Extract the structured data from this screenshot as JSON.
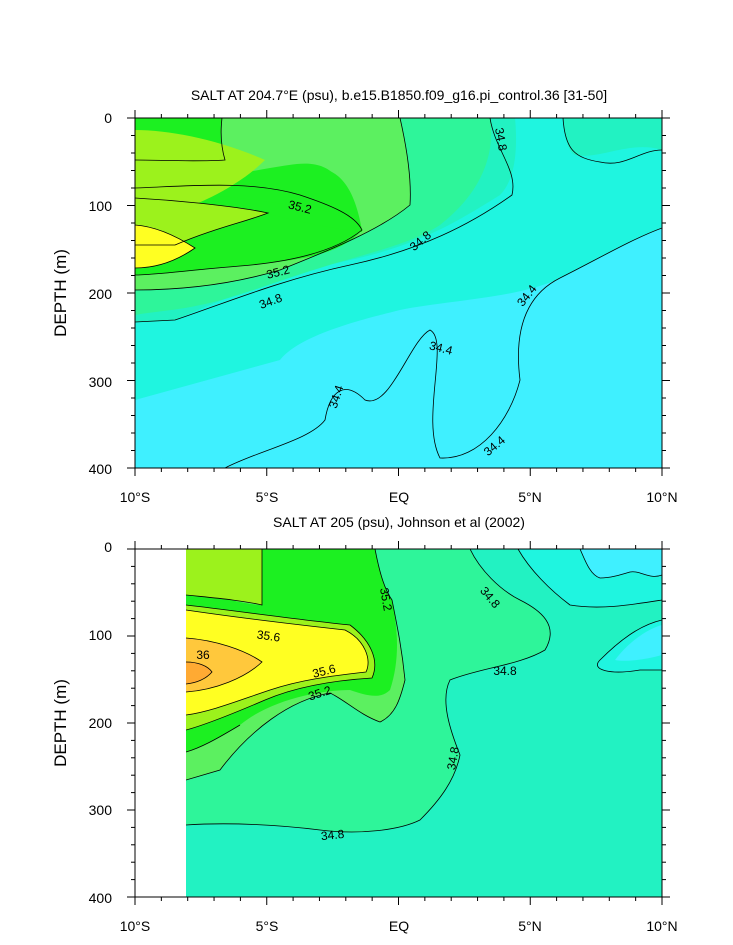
{
  "chart_data": [
    {
      "type": "contour",
      "title": "SALT AT 204.7°E (psu), b.e15.B1850.f09_g16.pi_control.36 [31-50]",
      "ylabel": "DEPTH (m)",
      "x_ticks": [
        "10°S",
        "5°S",
        "EQ",
        "5°N",
        "10°N"
      ],
      "x_values": [
        -10,
        -5,
        0,
        5,
        10
      ],
      "y_ticks": [
        "0",
        "100",
        "200",
        "300",
        "400"
      ],
      "ylim": [
        0,
        400
      ],
      "y_reversed": true,
      "contour_interval": 0.2,
      "contour_labels": [
        "34.8",
        "35.2",
        "34.8",
        "35.2",
        "34.8",
        "34.4",
        "34.4",
        "34.4",
        "34.4"
      ],
      "min_level": 34.2,
      "max_level": 35.6
    },
    {
      "type": "contour",
      "title": "SALT AT 205 (psu), Johnson et al (2002)",
      "ylabel": "DEPTH (m)",
      "x_ticks": [
        "10°S",
        "5°S",
        "EQ",
        "5°N",
        "10°N"
      ],
      "x_values": [
        -10,
        -5,
        0,
        5,
        10
      ],
      "y_ticks": [
        "0",
        "100",
        "200",
        "300",
        "400"
      ],
      "ylim": [
        0,
        400
      ],
      "y_reversed": true,
      "contour_interval": 0.2,
      "contour_labels": [
        "35.2",
        "34.8",
        "35.6",
        "36",
        "35.6",
        "35.2",
        "34.8",
        "34.8",
        "34.8"
      ],
      "min_level": 34.4,
      "max_level": 36.2
    }
  ],
  "colors": {
    "c34_2": "#3ff0ff",
    "c34_4": "#1ff5e0",
    "c34_6": "#22f2c2",
    "c34_8": "#2ef59a",
    "c35_0": "#5cf060",
    "c35_2": "#1cf021",
    "c35_4": "#9cf21c",
    "c35_6": "#ffff22",
    "c36_0": "#ffc83c"
  }
}
